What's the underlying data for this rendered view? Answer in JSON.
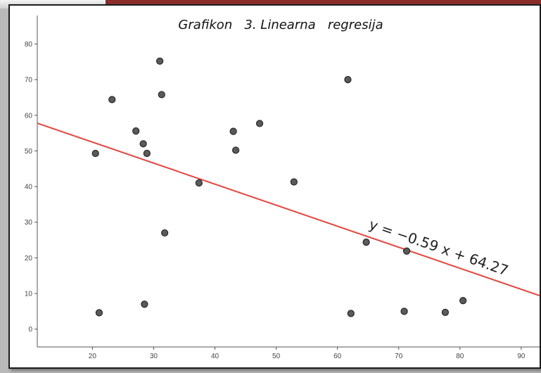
{
  "chart_data": {
    "type": "scatter",
    "title": "Grafikon   3. Linearna   regresija",
    "xlabel": "",
    "ylabel": "",
    "xlim": [
      11,
      93
    ],
    "ylim": [
      -5,
      88
    ],
    "x_ticks": [
      20,
      30,
      40,
      50,
      60,
      70,
      80,
      90
    ],
    "y_ticks": [
      0,
      10,
      20,
      30,
      40,
      50,
      60,
      70,
      80
    ],
    "x_tick_labels": [
      "20",
      "30",
      "40",
      "50",
      "60",
      "70",
      "80",
      "90"
    ],
    "y_tick_labels": [
      "0",
      "10",
      "20",
      "30",
      "40",
      "50",
      "60",
      "70",
      "80"
    ],
    "grid": false,
    "points": [
      {
        "x": 20.5,
        "y": 49.3
      },
      {
        "x": 21.1,
        "y": 4.6
      },
      {
        "x": 23.2,
        "y": 64.4
      },
      {
        "x": 27.1,
        "y": 55.6
      },
      {
        "x": 28.3,
        "y": 52.0
      },
      {
        "x": 28.5,
        "y": 7.0
      },
      {
        "x": 28.9,
        "y": 49.3
      },
      {
        "x": 31.0,
        "y": 75.2
      },
      {
        "x": 31.3,
        "y": 65.8
      },
      {
        "x": 31.8,
        "y": 27.0
      },
      {
        "x": 37.4,
        "y": 41.0
      },
      {
        "x": 43.0,
        "y": 55.5
      },
      {
        "x": 43.4,
        "y": 50.2
      },
      {
        "x": 47.3,
        "y": 57.7
      },
      {
        "x": 52.9,
        "y": 41.3
      },
      {
        "x": 61.7,
        "y": 70.0
      },
      {
        "x": 62.2,
        "y": 4.4
      },
      {
        "x": 64.7,
        "y": 24.4
      },
      {
        "x": 70.9,
        "y": 5.0
      },
      {
        "x": 71.3,
        "y": 21.9
      },
      {
        "x": 77.6,
        "y": 4.7
      },
      {
        "x": 80.5,
        "y": 8.0
      }
    ],
    "regression": {
      "slope": -0.59,
      "intercept": 64.27,
      "label": "y = −0.59 x + 64.27"
    },
    "colors": {
      "points": "#5a5a5a",
      "line": "#e8453f"
    }
  }
}
